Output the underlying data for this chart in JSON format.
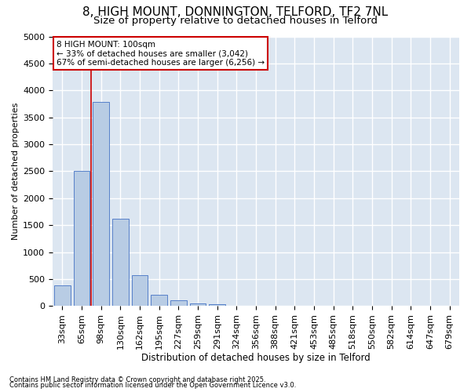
{
  "title_line1": "8, HIGH MOUNT, DONNINGTON, TELFORD, TF2 7NL",
  "title_line2": "Size of property relative to detached houses in Telford",
  "xlabel": "Distribution of detached houses by size in Telford",
  "ylabel": "Number of detached properties",
  "categories": [
    "33sqm",
    "65sqm",
    "98sqm",
    "130sqm",
    "162sqm",
    "195sqm",
    "227sqm",
    "259sqm",
    "291sqm",
    "324sqm",
    "356sqm",
    "388sqm",
    "421sqm",
    "453sqm",
    "485sqm",
    "518sqm",
    "550sqm",
    "582sqm",
    "614sqm",
    "647sqm",
    "679sqm"
  ],
  "values": [
    380,
    2500,
    3780,
    1620,
    580,
    210,
    110,
    55,
    35,
    5,
    5,
    0,
    0,
    0,
    0,
    0,
    0,
    0,
    0,
    0,
    0
  ],
  "bar_color": "#b8cce4",
  "bar_edge_color": "#4472c4",
  "vline_color": "#cc0000",
  "annotation_text": "8 HIGH MOUNT: 100sqm\n← 33% of detached houses are smaller (3,042)\n67% of semi-detached houses are larger (6,256) →",
  "annotation_box_edge_color": "#cc0000",
  "annotation_fontsize": 7.5,
  "ylim": [
    0,
    5000
  ],
  "yticks": [
    0,
    500,
    1000,
    1500,
    2000,
    2500,
    3000,
    3500,
    4000,
    4500,
    5000
  ],
  "title_fontsize1": 11,
  "title_fontsize2": 9.5,
  "xlabel_fontsize": 8.5,
  "ylabel_fontsize": 8,
  "tick_fontsize": 8,
  "footnote1": "Contains HM Land Registry data © Crown copyright and database right 2025.",
  "footnote2": "Contains public sector information licensed under the Open Government Licence v3.0.",
  "footnote_fontsize": 6,
  "figure_bg": "#ffffff",
  "plot_bg_color": "#dce6f1",
  "grid_color": "#ffffff"
}
